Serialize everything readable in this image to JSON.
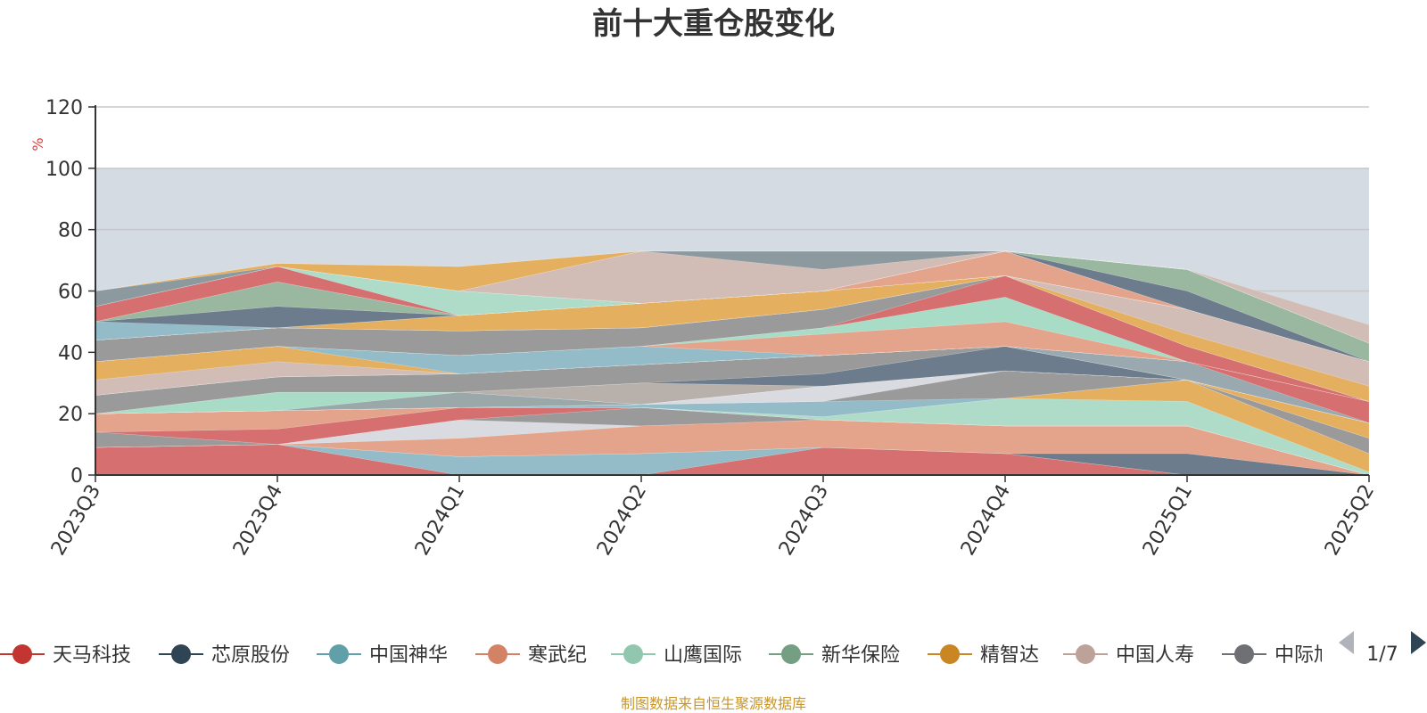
{
  "chart_data": {
    "type": "area",
    "title": "前十大重仓股变化",
    "ylabel": "%",
    "ylim": [
      0,
      120
    ],
    "yticks": [
      "0",
      "20",
      "40",
      "60",
      "80",
      "100",
      "120"
    ],
    "categories": [
      "2023Q3",
      "2023Q4",
      "2024Q1",
      "2024Q2",
      "2024Q3",
      "2024Q4",
      "2025Q1",
      "2025Q2"
    ],
    "stacked": true,
    "highlight_band": [
      0,
      100
    ],
    "layers": [
      {
        "color": "#d66f6f",
        "values": [
          9,
          10,
          0,
          0,
          9,
          7,
          0,
          0
        ]
      },
      {
        "color": "#93bcc8",
        "values": [
          0,
          0,
          6,
          7,
          0,
          0,
          0,
          0
        ]
      },
      {
        "color": "#6c7c8c",
        "values": [
          0,
          0,
          0,
          0,
          0,
          0,
          7,
          0
        ]
      },
      {
        "color": "#e4a48c",
        "values": [
          0,
          0,
          6,
          9,
          9,
          9,
          9,
          0
        ]
      },
      {
        "color": "#d9dbe0",
        "values": [
          0,
          0,
          6,
          0,
          0,
          0,
          0,
          0
        ]
      },
      {
        "color": "#9a9a9a",
        "values": [
          5,
          0,
          0,
          6,
          0,
          0,
          0,
          0
        ]
      },
      {
        "color": "#d66f6f",
        "values": [
          0,
          5,
          4,
          0,
          0,
          0,
          0,
          0
        ]
      },
      {
        "color": "#e4a48c",
        "values": [
          6,
          6,
          0,
          0,
          0,
          0,
          0,
          0
        ]
      },
      {
        "color": "#aedcc8",
        "values": [
          0,
          0,
          0,
          0,
          1,
          9,
          8,
          1
        ]
      },
      {
        "color": "#e4b060",
        "values": [
          0,
          0,
          0,
          0,
          0,
          0,
          7,
          6
        ]
      },
      {
        "color": "#93bcc8",
        "values": [
          0,
          0,
          0,
          1,
          5,
          0,
          0,
          0
        ]
      },
      {
        "color": "#9a9a9a",
        "values": [
          0,
          0,
          0,
          0,
          0,
          9,
          0,
          5
        ]
      },
      {
        "color": "#d9dbe0",
        "values": [
          0,
          0,
          0,
          0,
          5,
          0,
          0,
          0
        ]
      },
      {
        "color": "#e4b060",
        "values": [
          0,
          0,
          0,
          0,
          0,
          0,
          0,
          5
        ]
      },
      {
        "color": "#9aa8aa",
        "values": [
          0,
          0,
          5,
          0,
          0,
          0,
          0,
          0
        ]
      },
      {
        "color": "#a9dcc6",
        "values": [
          0,
          6,
          0,
          0,
          0,
          0,
          0,
          0
        ]
      },
      {
        "color": "#b8b0aa",
        "values": [
          0,
          0,
          0,
          7,
          0,
          0,
          0,
          0
        ]
      },
      {
        "color": "#6c7c8c",
        "values": [
          0,
          0,
          0,
          0,
          4,
          8,
          0,
          0
        ]
      },
      {
        "color": "#9a9a9a",
        "values": [
          6,
          5,
          6,
          6,
          6,
          0,
          0,
          0
        ]
      },
      {
        "color": "#e4b060",
        "values": [
          0,
          0,
          0,
          0,
          0,
          0,
          0,
          0
        ]
      },
      {
        "color": "#9aa8b0",
        "values": [
          0,
          0,
          0,
          0,
          0,
          0,
          6,
          0
        ]
      },
      {
        "color": "#d66f6f",
        "values": [
          0,
          0,
          0,
          0,
          0,
          0,
          0,
          7
        ]
      },
      {
        "color": "#d2bdb6",
        "values": [
          5,
          5,
          0,
          0,
          0,
          0,
          0,
          0
        ]
      },
      {
        "color": "#e4b060",
        "values": [
          6,
          5,
          0,
          0,
          0,
          0,
          0,
          0
        ]
      },
      {
        "color": "#93bcc8",
        "values": [
          0,
          0,
          6,
          6,
          0,
          0,
          0,
          0
        ]
      },
      {
        "color": "#e4a48c",
        "values": [
          0,
          0,
          0,
          0,
          7,
          8,
          0,
          0
        ]
      },
      {
        "color": "#a9dcc6",
        "values": [
          0,
          0,
          0,
          0,
          2,
          8,
          0,
          0
        ]
      },
      {
        "color": "#d66f6f",
        "values": [
          0,
          0,
          0,
          0,
          0,
          7,
          5,
          0
        ]
      },
      {
        "color": "#9a9a9a",
        "values": [
          7,
          6,
          8,
          6,
          6,
          0,
          0,
          0
        ]
      },
      {
        "color": "#d66f6f",
        "values": [
          0,
          0,
          0,
          0,
          0,
          0,
          0,
          0
        ]
      },
      {
        "color": "#e4b060",
        "values": [
          0,
          0,
          0,
          0,
          0,
          0,
          4,
          5
        ]
      },
      {
        "color": "#d2bdb6",
        "values": [
          0,
          0,
          0,
          0,
          0,
          0,
          8,
          8
        ]
      },
      {
        "color": "#e4b060",
        "values": [
          0,
          0,
          5,
          8,
          6,
          0,
          0,
          0
        ]
      },
      {
        "color": "#8c9aa0",
        "values": [
          0,
          0,
          0,
          0,
          0,
          0,
          0,
          0
        ]
      },
      {
        "color": "#93bcc8",
        "values": [
          6,
          0,
          0,
          0,
          0,
          0,
          0,
          0
        ]
      },
      {
        "color": "#6c7c8c",
        "values": [
          0,
          7,
          0,
          0,
          0,
          0,
          0,
          0
        ]
      },
      {
        "color": "#9ab8a0",
        "values": [
          0,
          8,
          0,
          0,
          0,
          0,
          0,
          0
        ]
      },
      {
        "color": "#e4a48c",
        "values": [
          0,
          0,
          0,
          0,
          0,
          8,
          0,
          0
        ]
      },
      {
        "color": "#d66f6f",
        "values": [
          5,
          5,
          0,
          0,
          0,
          0,
          0,
          0
        ]
      },
      {
        "color": "#aedcc8",
        "values": [
          0,
          0,
          8,
          0,
          0,
          0,
          0,
          0
        ]
      },
      {
        "color": "#6c7c8c",
        "values": [
          0,
          0,
          0,
          0,
          0,
          0,
          6,
          0
        ]
      },
      {
        "color": "#9ab8a0",
        "values": [
          0,
          0,
          0,
          0,
          0,
          0,
          7,
          6
        ]
      },
      {
        "color": "#d2bdb6",
        "values": [
          0,
          0,
          0,
          17,
          7,
          0,
          0,
          0
        ]
      },
      {
        "color": "#8c9aa0",
        "values": [
          5,
          0,
          0,
          0,
          6,
          0,
          0,
          0
        ]
      },
      {
        "color": "#e4b060",
        "values": [
          0,
          1,
          8,
          0,
          0,
          0,
          0,
          0
        ]
      },
      {
        "color": "#d2bdb6",
        "values": [
          0,
          0,
          0,
          0,
          0,
          0,
          0,
          6
        ]
      }
    ],
    "legend": {
      "position": "bottom",
      "items": [
        {
          "label": "天马科技",
          "color": "#c23531"
        },
        {
          "label": "芯原股份",
          "color": "#2f4554"
        },
        {
          "label": "中国神华",
          "color": "#61a0a8"
        },
        {
          "label": "寒武纪",
          "color": "#d48265"
        },
        {
          "label": "山鹰国际",
          "color": "#91c7ae"
        },
        {
          "label": "新华保险",
          "color": "#749f83"
        },
        {
          "label": "精智达",
          "color": "#ca8622"
        },
        {
          "label": "中国人寿",
          "color": "#bda29a"
        },
        {
          "label": "中际旭创",
          "color": "#6e7074"
        }
      ],
      "page": "1/7"
    },
    "source": "制图数据来自恒生聚源数据库"
  }
}
